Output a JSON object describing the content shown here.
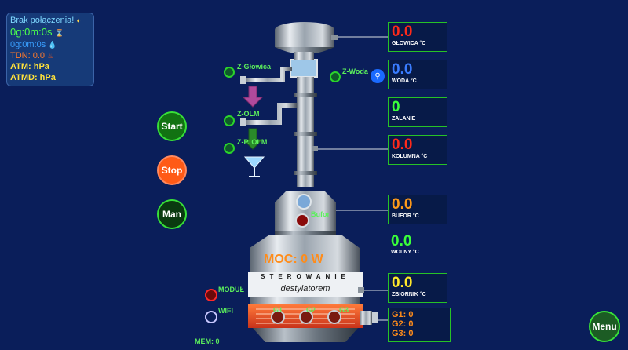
{
  "status": {
    "connection": "Brak połączenia!",
    "time_main": "0g:0m:0s",
    "time_secondary": "0g:0m:0s",
    "tdn": "TDN: 0.0",
    "atm": "ATM:  hPa",
    "atmd": "ATMD:  hPa"
  },
  "readings": {
    "glowica": {
      "value": "0.0",
      "label": "GŁOWICA °C",
      "color": "#ff2a1a"
    },
    "woda": {
      "value": "0.0",
      "label": "WODA °C",
      "color": "#3a7cff"
    },
    "zalanie": {
      "value": "0",
      "label": "ZALANIE",
      "color": "#3aff3a"
    },
    "kolumna": {
      "value": "0.0",
      "label": "KOLUMNA °C",
      "color": "#ff2a1a"
    },
    "bufor": {
      "value": "0.0",
      "label": "BUFOR °C",
      "color": "#ff9a1a"
    },
    "wolny": {
      "value": "0.0",
      "label": "WOLNY °C",
      "color": "#3aff3a"
    },
    "zbiornik": {
      "value": "0.0",
      "label": "ZBIORNIK °C",
      "color": "#ffe82a"
    }
  },
  "controls": {
    "start": "Start",
    "stop": "Stop",
    "man": "Man",
    "menu": "Menu"
  },
  "valves": {
    "glowica": "Z-Głowica",
    "woda": "Z-Woda",
    "olm": "Z-OLM",
    "polm": "Z-P. OLM",
    "bufor": "Bufor"
  },
  "still": {
    "power": "MOC: 0 W",
    "brand_top": "STEROWANIE",
    "brand_bottom": "destylatorem",
    "heater_labels": [
      "G1",
      "G2",
      "G3"
    ]
  },
  "heaters": {
    "g1": "G1: 0",
    "g2": "G2: 0",
    "g3": "G3: 0"
  },
  "module": {
    "modul": "MODUŁ",
    "wifi": "WIFI",
    "mem": "MEM: 0"
  }
}
